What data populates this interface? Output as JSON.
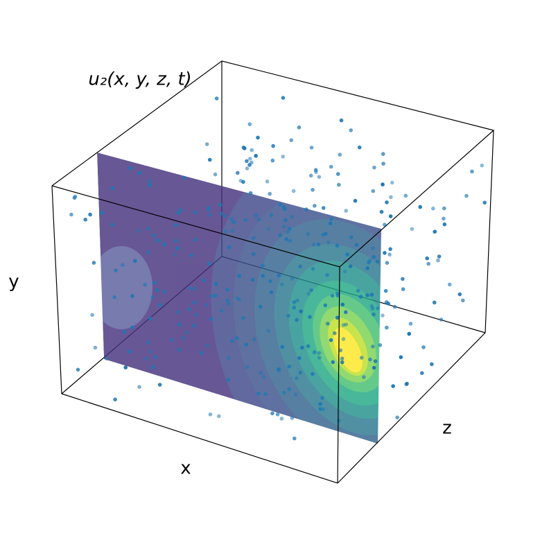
{
  "title": "u₂(x, y, z, t)",
  "axes": {
    "x": "x",
    "y": "y",
    "z": "z"
  }
}
